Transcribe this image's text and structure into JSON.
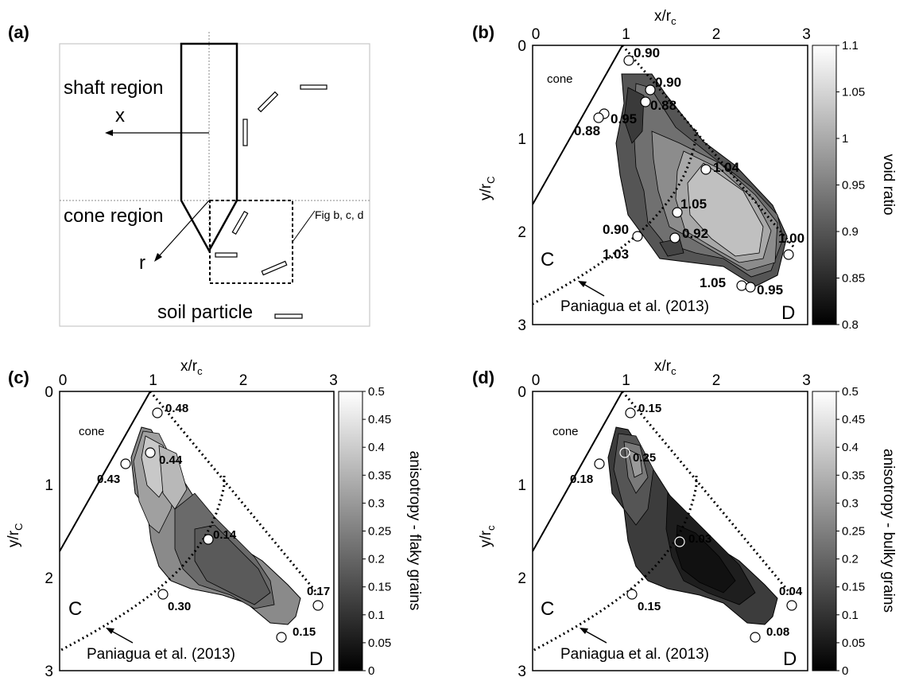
{
  "panel_a": {
    "label": "(a)",
    "shaft_region": "shaft region",
    "cone_region": "cone region",
    "x_label": "x",
    "r_label": "r",
    "fig_ref": "Fig b, c, d",
    "soil_particle": "soil particle"
  },
  "shared": {
    "x_axis_title_main": "x/r",
    "x_axis_title_sub": "c",
    "y_axis_title_main": "y/r",
    "y_axis_title_sub": "C",
    "x_ticks": [
      "0",
      "1",
      "2",
      "3"
    ],
    "y_ticks": [
      "0",
      "1",
      "2",
      "3"
    ],
    "cone_label": "cone",
    "zone_c": "C",
    "zone_d": "D",
    "reference": "Paniagua et al. (2013)"
  },
  "panel_b": {
    "label": "(b)",
    "colorbar_title": "void ratio",
    "colorbar_ticks": [
      "1.1",
      "1.05",
      "1",
      "0.95",
      "0.9",
      "0.85",
      "0.8"
    ],
    "value_labels": [
      "0.90",
      "0.90",
      "0.88",
      "0.95",
      "0.88",
      "1.04",
      "1.05",
      "0.90",
      "0.92",
      "1.03",
      "1.00",
      "1.05",
      "0.95"
    ]
  },
  "panel_c": {
    "label": "(c)",
    "colorbar_title": "anisotropy - flaky grains",
    "colorbar_ticks": [
      "0.5",
      "0.45",
      "0.4",
      "0.35",
      "0.3",
      "0.25",
      "0.2",
      "0.15",
      "0.1",
      "0.05",
      "0"
    ],
    "value_labels": [
      "0.48",
      "0.44",
      "0.43",
      "0.14",
      "0.30",
      "0.17",
      "0.15"
    ]
  },
  "panel_d": {
    "label": "(d)",
    "y_axis_title_main": "y/r",
    "y_axis_title_sub": "c",
    "colorbar_title": "anisotropy - bulky grains",
    "colorbar_ticks": [
      "0.5",
      "0.45",
      "0.4",
      "0.35",
      "0.3",
      "0.25",
      "0.2",
      "0.15",
      "0.1",
      "0.05",
      "0"
    ],
    "value_labels": [
      "0.15",
      "0.25",
      "0.18",
      "0.03",
      "0.15",
      "0.04",
      "0.08"
    ]
  }
}
